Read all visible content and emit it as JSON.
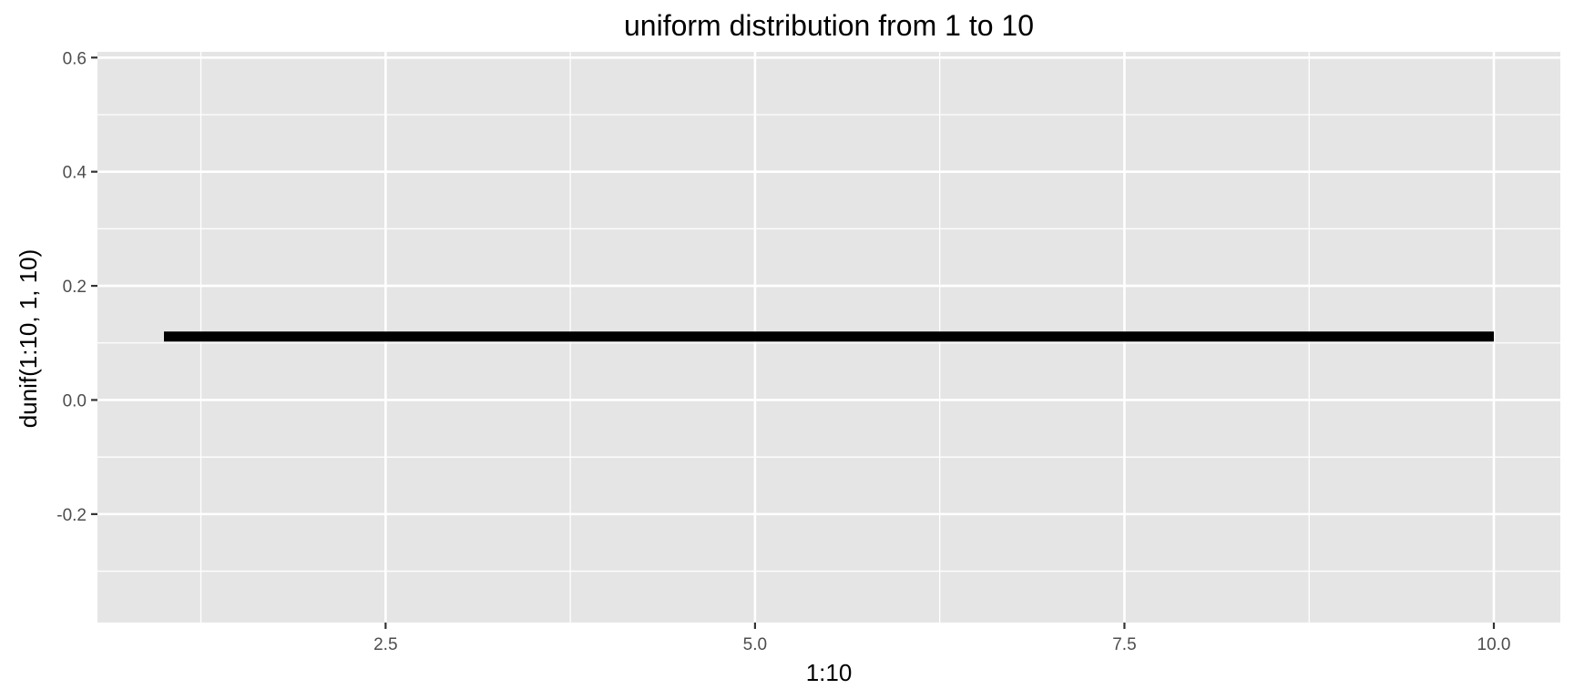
{
  "chart_data": {
    "type": "line",
    "title": "uniform distribution from 1 to 10",
    "xlabel": "1:10",
    "ylabel": "dunif(1:10, 1, 10)",
    "x_ticks": [
      "2.5",
      "5.0",
      "7.5",
      "10.0"
    ],
    "y_ticks": [
      "-0.2",
      "0.0",
      "0.2",
      "0.4",
      "0.6"
    ],
    "xlim": [
      0.55,
      10.45
    ],
    "ylim": [
      -0.39,
      0.61
    ],
    "grid": true,
    "series": [
      {
        "x": [
          1,
          2,
          3,
          4,
          5,
          6,
          7,
          8,
          9,
          10
        ],
        "y": [
          0.1111,
          0.1111,
          0.1111,
          0.1111,
          0.1111,
          0.1111,
          0.1111,
          0.1111,
          0.1111,
          0.1111
        ],
        "color": "#000000"
      }
    ],
    "colors": {
      "panel_background": "#e5e5e5",
      "grid_line": "#ffffff",
      "tick_mark": "#333333"
    }
  }
}
